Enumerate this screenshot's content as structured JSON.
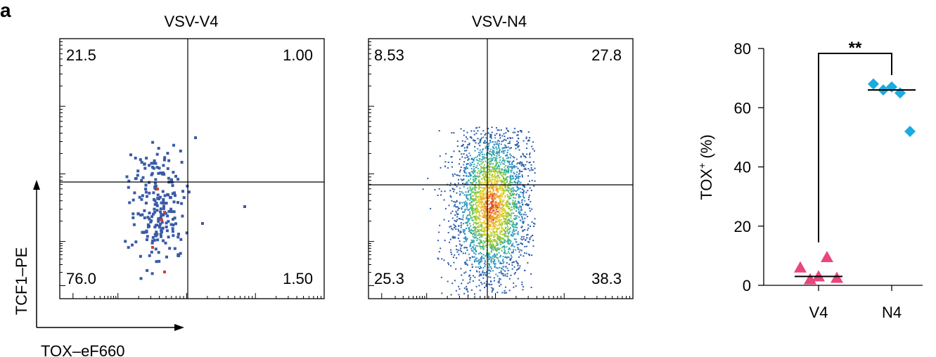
{
  "panel_label": "a",
  "axis_labels": {
    "y": "TCF1–PE",
    "x": "TOX–eF660"
  },
  "chart_data": [
    {
      "type": "scatter",
      "title": "VSV-V4",
      "xlabel": "TOX–eF660",
      "ylabel": "TCF1–PE",
      "quadrants": {
        "top_left": "21.5",
        "top_right": "1.00",
        "bottom_left": "76.0",
        "bottom_right": "1.50"
      }
    },
    {
      "type": "scatter",
      "title": "VSV-N4",
      "xlabel": "TOX–eF660",
      "ylabel": "TCF1–PE",
      "quadrants": {
        "top_left": "8.53",
        "top_right": "27.8",
        "bottom_left": "25.3",
        "bottom_right": "38.3"
      }
    },
    {
      "type": "scatter",
      "title": "",
      "xlabel": "",
      "ylabel": "TOX+ (%)",
      "ylabel_main": "TOX",
      "ylabel_sup": "+",
      "ylabel_rest": " (%)",
      "ylim": [
        0,
        80
      ],
      "yticks": [
        "0",
        "20",
        "40",
        "60",
        "80"
      ],
      "categories": [
        "V4",
        "N4"
      ],
      "series": [
        {
          "category": "V4",
          "marker": "triangle",
          "color": "#e8467f",
          "values": [
            6,
            2,
            3,
            9.5,
            2.5
          ],
          "mean": 3
        },
        {
          "category": "N4",
          "marker": "diamond",
          "color": "#1aabdf",
          "values": [
            68,
            66,
            67,
            65,
            52
          ],
          "mean": 66
        }
      ],
      "significance": "**"
    }
  ]
}
